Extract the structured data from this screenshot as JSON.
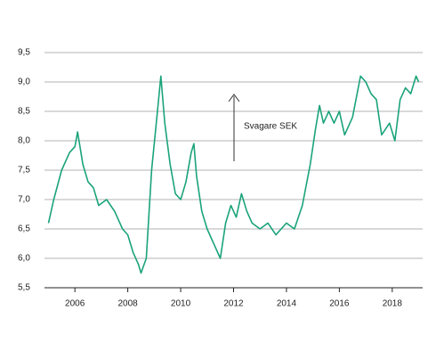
{
  "chart_data": {
    "type": "line",
    "annotation": "Svagare SEK",
    "x": [
      2005.0,
      2005.2,
      2005.5,
      2005.8,
      2006.0,
      2006.1,
      2006.3,
      2006.5,
      2006.7,
      2006.9,
      2007.2,
      2007.5,
      2007.8,
      2008.0,
      2008.2,
      2008.4,
      2008.5,
      2008.7,
      2008.9,
      2009.1,
      2009.25,
      2009.4,
      2009.6,
      2009.8,
      2010.0,
      2010.2,
      2010.4,
      2010.5,
      2010.6,
      2010.8,
      2011.0,
      2011.3,
      2011.5,
      2011.7,
      2011.9,
      2012.1,
      2012.3,
      2012.5,
      2012.7,
      2013.0,
      2013.3,
      2013.6,
      2013.8,
      2014.0,
      2014.3,
      2014.6,
      2014.9,
      2015.1,
      2015.25,
      2015.4,
      2015.6,
      2015.8,
      2016.0,
      2016.2,
      2016.5,
      2016.8,
      2017.0,
      2017.2,
      2017.4,
      2017.6,
      2017.9,
      2018.1,
      2018.3,
      2018.5,
      2018.7,
      2018.9,
      2019.0
    ],
    "values": [
      6.6,
      7.0,
      7.5,
      7.8,
      7.9,
      8.15,
      7.6,
      7.3,
      7.2,
      6.9,
      7.0,
      6.8,
      6.5,
      6.4,
      6.1,
      5.9,
      5.75,
      6.0,
      7.5,
      8.4,
      9.1,
      8.3,
      7.6,
      7.1,
      7.0,
      7.3,
      7.8,
      7.95,
      7.4,
      6.8,
      6.5,
      6.2,
      6.0,
      6.6,
      6.9,
      6.7,
      7.1,
      6.8,
      6.6,
      6.5,
      6.6,
      6.4,
      6.5,
      6.6,
      6.5,
      6.9,
      7.6,
      8.2,
      8.6,
      8.3,
      8.5,
      8.3,
      8.5,
      8.1,
      8.4,
      9.1,
      9.0,
      8.8,
      8.7,
      8.1,
      8.3,
      8.0,
      8.7,
      8.9,
      8.8,
      9.1,
      9.0
    ],
    "color": "#1aa37a",
    "xlim": [
      2004.85,
      2019.15
    ],
    "xticks": [
      2006,
      2008,
      2010,
      2012,
      2014,
      2016,
      2018
    ],
    "ylim": [
      5.5,
      9.5
    ],
    "yticks": [
      {
        "value": 5.5,
        "label": "5,5"
      },
      {
        "value": 6.0,
        "label": "6,0"
      },
      {
        "value": 6.5,
        "label": "6,5"
      },
      {
        "value": 7.0,
        "label": "7,0"
      },
      {
        "value": 7.5,
        "label": "7,5"
      },
      {
        "value": 8.0,
        "label": "8,0"
      },
      {
        "value": 8.5,
        "label": "8,5"
      },
      {
        "value": 9.0,
        "label": "9,0"
      },
      {
        "value": 9.5,
        "label": "9,5"
      }
    ],
    "grid": true
  }
}
